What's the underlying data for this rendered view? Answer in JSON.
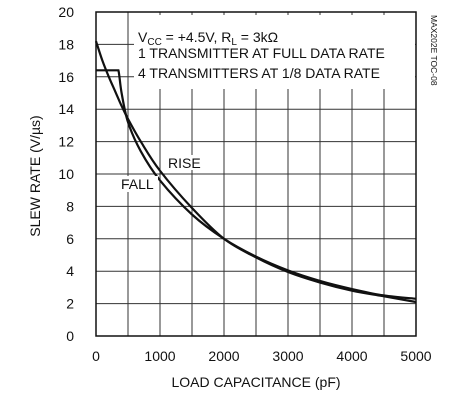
{
  "chart_data": {
    "type": "line",
    "title": "",
    "xlabel": "LOAD CAPACITANCE (pF)",
    "ylabel": "SLEW RATE (V/µs)",
    "xlim": [
      0,
      5000
    ],
    "ylim": [
      0,
      20
    ],
    "x_ticks": [
      "0",
      "1000",
      "2000",
      "3000",
      "4000",
      "5000"
    ],
    "y_ticks": [
      "0",
      "2",
      "4",
      "6",
      "8",
      "10",
      "12",
      "14",
      "16",
      "18",
      "20"
    ],
    "grid": true,
    "annotations": {
      "condition_vcc": "V",
      "condition_vcc_sub": "CC",
      "condition_vcc_rest": " = +4.5V, R",
      "condition_rl_sub": "L",
      "condition_rl_rest": " = 3kΩ",
      "line1": "1 TRANSMITTER AT FULL DATA RATE",
      "line2": "4 TRANSMITTERS AT 1/8 DATA RATE",
      "rise_label": "RISE",
      "fall_label": "FALL",
      "side_code": "MAX202E TOC-08"
    },
    "series": [
      {
        "name": "RISE",
        "x": [
          0,
          100,
          200,
          300,
          400,
          500,
          700,
          1000,
          1500,
          2000,
          2500,
          3000,
          3500,
          4000,
          4500,
          5000
        ],
        "y": [
          18.2,
          17.0,
          16.0,
          15.1,
          14.2,
          13.4,
          12.0,
          10.2,
          7.9,
          6.0,
          4.85,
          3.95,
          3.3,
          2.8,
          2.45,
          2.1
        ]
      },
      {
        "name": "FALL",
        "x": [
          0,
          100,
          200,
          300,
          350,
          400,
          500,
          700,
          1000,
          1500,
          2000,
          2500,
          3000,
          3500,
          4000,
          4500,
          5000
        ],
        "y": [
          16.4,
          16.4,
          16.4,
          16.4,
          16.4,
          15.0,
          13.2,
          11.4,
          9.6,
          7.5,
          6.0,
          4.9,
          4.05,
          3.4,
          2.9,
          2.5,
          2.3
        ]
      }
    ]
  }
}
